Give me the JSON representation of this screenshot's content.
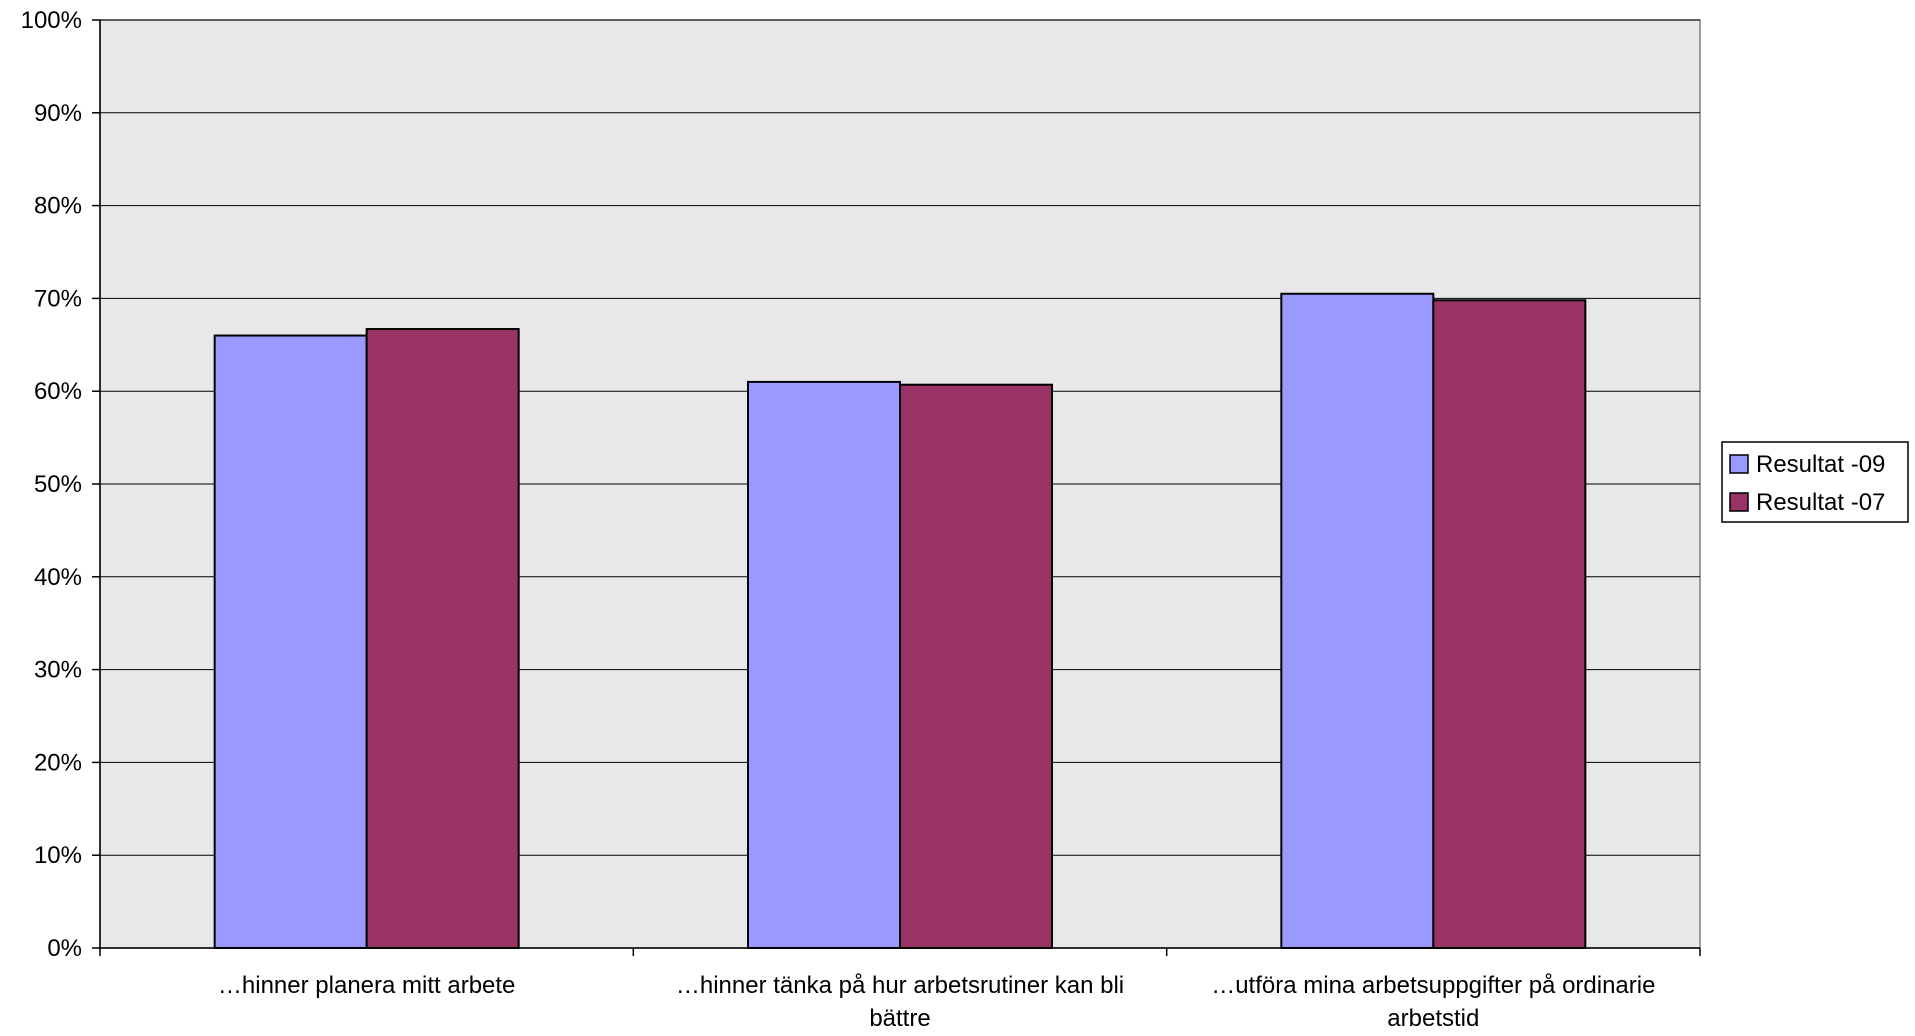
{
  "chart_data": {
    "type": "bar",
    "categories": [
      [
        "…hinner planera mitt arbete"
      ],
      [
        "…hinner tänka på hur arbetsrutiner kan bli",
        "bättre"
      ],
      [
        "…utföra mina arbetsuppgifter på ordinarie",
        "arbetstid"
      ]
    ],
    "series": [
      {
        "name": "Resultat -09",
        "color": "#9999ff",
        "values": [
          66,
          61,
          70.5
        ]
      },
      {
        "name": "Resultat -07",
        "color": "#993366",
        "values": [
          66.7,
          60.7,
          69.8
        ]
      }
    ],
    "ylim": [
      0,
      100
    ],
    "y_ticks": [
      0,
      10,
      20,
      30,
      40,
      50,
      60,
      70,
      80,
      90,
      100
    ],
    "y_tick_format": "percent",
    "grid": true,
    "plot_background": "#e8e8e8",
    "legend_position": "right"
  }
}
